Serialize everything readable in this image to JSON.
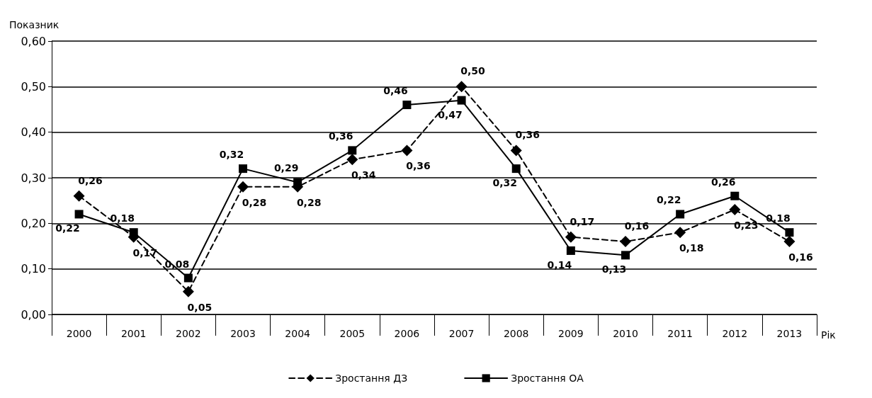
{
  "chart_data": {
    "type": "line",
    "ylabel": "Показник",
    "xlabel": "Рік",
    "categories": [
      "2000",
      "2001",
      "2002",
      "2003",
      "2004",
      "2005",
      "2006",
      "2007",
      "2008",
      "2009",
      "2010",
      "2011",
      "2012",
      "2013"
    ],
    "series": [
      {
        "name": "Зростання ДЗ",
        "color": "#000000",
        "marker": "diamond",
        "line_style": "dashed",
        "values": [
          0.26,
          0.17,
          0.05,
          0.28,
          0.28,
          0.34,
          0.36,
          0.5,
          0.36,
          0.17,
          0.16,
          0.18,
          0.23,
          0.16
        ],
        "value_labels": [
          "0,26",
          "0,17",
          "0,05",
          "0,28",
          "0,28",
          "0,34",
          "0,36",
          "0,50",
          "0,36",
          "0,17",
          "0,16",
          "0,18",
          "0,23",
          "0,16"
        ]
      },
      {
        "name": "Зростання ОА",
        "color": "#000000",
        "marker": "square",
        "line_style": "solid",
        "values": [
          0.22,
          0.18,
          0.08,
          0.32,
          0.29,
          0.36,
          0.46,
          0.47,
          0.32,
          0.14,
          0.13,
          0.22,
          0.26,
          0.18
        ],
        "value_labels": [
          "0,22",
          "0,18",
          "0,08",
          "0,32",
          "0,29",
          "0,36",
          "0,46",
          "0,47",
          "0,32",
          "0,14",
          "0,13",
          "0,22",
          "0,26",
          "0,18"
        ]
      }
    ],
    "ylim": [
      0,
      0.6
    ],
    "yticks": [
      {
        "value": 0,
        "label": "0,00"
      },
      {
        "value": 0.1,
        "label": "0,10"
      },
      {
        "value": 0.2,
        "label": "0,20"
      },
      {
        "value": 0.3,
        "label": "0,30"
      },
      {
        "value": 0.4,
        "label": "0,40"
      },
      {
        "value": 0.5,
        "label": "0,50"
      },
      {
        "value": 0.6,
        "label": "0,60"
      }
    ],
    "grid": "y",
    "legend": "bottom"
  }
}
